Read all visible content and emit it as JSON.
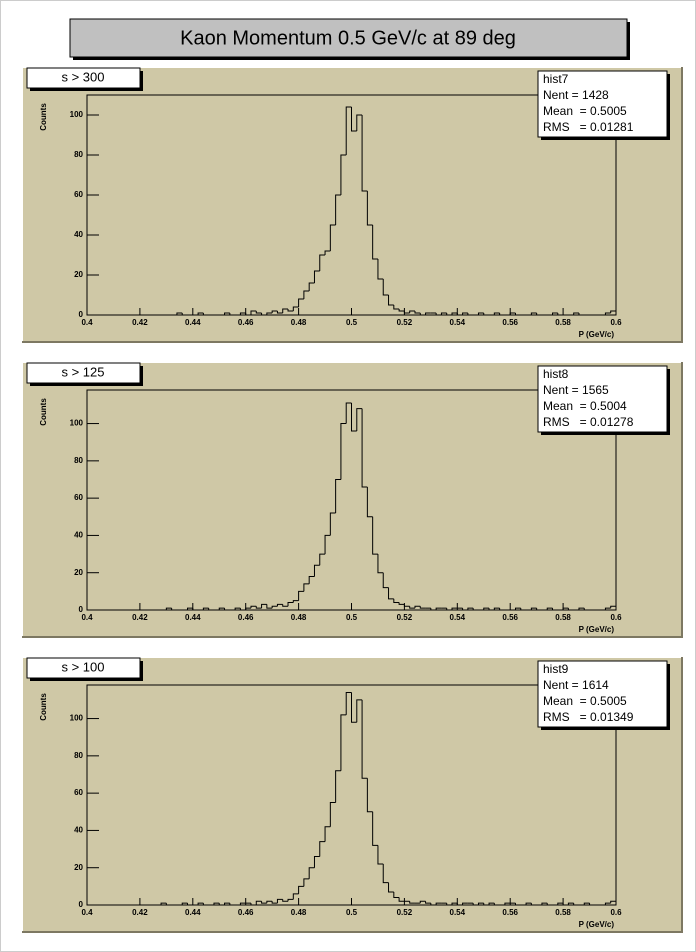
{
  "title": "Kaon Momentum 0.5 GeV/c at 89 deg",
  "chart_data": [
    {
      "type": "histogram",
      "title": "s > 300",
      "xlabel": "P (GeV/c)",
      "ylabel": "Counts",
      "stats": [
        "hist7",
        "Nent = 1428",
        "Mean  = 0.5005",
        "RMS   = 0.01281"
      ],
      "color": "#000000",
      "bins": [
        0.4,
        0.402,
        0.404,
        0.406,
        0.408,
        0.41,
        0.412,
        0.414,
        0.416,
        0.418,
        0.42,
        0.422,
        0.424,
        0.426,
        0.428,
        0.43,
        0.432,
        0.434,
        0.436,
        0.438,
        0.44,
        0.442,
        0.444,
        0.446,
        0.448,
        0.45,
        0.452,
        0.454,
        0.456,
        0.458,
        0.46,
        0.462,
        0.464,
        0.466,
        0.468,
        0.47,
        0.472,
        0.474,
        0.476,
        0.478,
        0.48,
        0.482,
        0.484,
        0.486,
        0.488,
        0.49,
        0.492,
        0.494,
        0.496,
        0.498,
        0.5,
        0.502,
        0.504,
        0.506,
        0.508,
        0.51,
        0.512,
        0.514,
        0.516,
        0.518,
        0.52,
        0.522,
        0.524,
        0.526,
        0.528,
        0.53,
        0.532,
        0.534,
        0.536,
        0.538,
        0.54,
        0.542,
        0.544,
        0.546,
        0.548,
        0.55,
        0.552,
        0.554,
        0.556,
        0.558,
        0.56,
        0.562,
        0.564,
        0.566,
        0.568,
        0.57,
        0.572,
        0.574,
        0.576,
        0.578,
        0.58,
        0.582,
        0.584,
        0.586,
        0.588,
        0.59,
        0.592,
        0.594,
        0.596,
        0.598,
        0.6
      ],
      "values": [
        0,
        0,
        0,
        0,
        0,
        0,
        0,
        0,
        0,
        0,
        0,
        0,
        0,
        0,
        0,
        0,
        0,
        1,
        0,
        0,
        0,
        1,
        0,
        0,
        0,
        0,
        1,
        0,
        0,
        1,
        0,
        2,
        1,
        0,
        1,
        2,
        1,
        3,
        2,
        4,
        8,
        12,
        16,
        22,
        30,
        32,
        45,
        60,
        80,
        104,
        92,
        100,
        62,
        45,
        28,
        18,
        10,
        5,
        3,
        2,
        1,
        2,
        1,
        0,
        1,
        1,
        0,
        1,
        0,
        1,
        0,
        1,
        0,
        0,
        1,
        0,
        0,
        1,
        0,
        0,
        1,
        0,
        0,
        0,
        1,
        0,
        0,
        0,
        1,
        0,
        0,
        0,
        1,
        0,
        0,
        0,
        0,
        0,
        1,
        2
      ],
      "xlim": [
        0.4,
        0.6
      ],
      "ylim": [
        0,
        110
      ],
      "xticks": [
        0.4,
        0.42,
        0.44,
        0.46,
        0.48,
        0.5,
        0.52,
        0.54,
        0.56,
        0.58,
        0.6
      ],
      "yticks": [
        0,
        20,
        40,
        60,
        80,
        100
      ]
    },
    {
      "type": "histogram",
      "title": "s > 125",
      "xlabel": "P (GeV/c)",
      "ylabel": "Counts",
      "stats": [
        "hist8",
        "Nent = 1565",
        "Mean  = 0.5004",
        "RMS   = 0.01278"
      ],
      "color": "#000000",
      "bins": [
        0.4,
        0.402,
        0.404,
        0.406,
        0.408,
        0.41,
        0.412,
        0.414,
        0.416,
        0.418,
        0.42,
        0.422,
        0.424,
        0.426,
        0.428,
        0.43,
        0.432,
        0.434,
        0.436,
        0.438,
        0.44,
        0.442,
        0.444,
        0.446,
        0.448,
        0.45,
        0.452,
        0.454,
        0.456,
        0.458,
        0.46,
        0.462,
        0.464,
        0.466,
        0.468,
        0.47,
        0.472,
        0.474,
        0.476,
        0.478,
        0.48,
        0.482,
        0.484,
        0.486,
        0.488,
        0.49,
        0.492,
        0.494,
        0.496,
        0.498,
        0.5,
        0.502,
        0.504,
        0.506,
        0.508,
        0.51,
        0.512,
        0.514,
        0.516,
        0.518,
        0.52,
        0.522,
        0.524,
        0.526,
        0.528,
        0.53,
        0.532,
        0.534,
        0.536,
        0.538,
        0.54,
        0.542,
        0.544,
        0.546,
        0.548,
        0.55,
        0.552,
        0.554,
        0.556,
        0.558,
        0.56,
        0.562,
        0.564,
        0.566,
        0.568,
        0.57,
        0.572,
        0.574,
        0.576,
        0.578,
        0.58,
        0.582,
        0.584,
        0.586,
        0.588,
        0.59,
        0.592,
        0.594,
        0.596,
        0.598,
        0.6
      ],
      "values": [
        0,
        0,
        0,
        0,
        0,
        0,
        0,
        0,
        0,
        0,
        0,
        0,
        0,
        0,
        0,
        1,
        0,
        0,
        0,
        1,
        0,
        0,
        1,
        0,
        0,
        1,
        0,
        0,
        1,
        0,
        1,
        2,
        1,
        3,
        1,
        2,
        3,
        2,
        4,
        5,
        10,
        14,
        18,
        24,
        30,
        40,
        52,
        70,
        100,
        111,
        96,
        108,
        66,
        50,
        30,
        20,
        12,
        6,
        4,
        3,
        2,
        1,
        2,
        1,
        1,
        0,
        1,
        1,
        0,
        1,
        1,
        0,
        1,
        0,
        0,
        1,
        0,
        1,
        0,
        0,
        0,
        1,
        0,
        0,
        1,
        0,
        0,
        1,
        0,
        0,
        1,
        0,
        0,
        1,
        0,
        0,
        0,
        0,
        1,
        2
      ],
      "xlim": [
        0.4,
        0.6
      ],
      "ylim": [
        0,
        118
      ],
      "xticks": [
        0.4,
        0.42,
        0.44,
        0.46,
        0.48,
        0.5,
        0.52,
        0.54,
        0.56,
        0.58,
        0.6
      ],
      "yticks": [
        0,
        20,
        40,
        60,
        80,
        100
      ]
    },
    {
      "type": "histogram",
      "title": "s > 100",
      "xlabel": "P (GeV/c)",
      "ylabel": "Counts",
      "stats": [
        "hist9",
        "Nent = 1614",
        "Mean  = 0.5005",
        "RMS   = 0.01349"
      ],
      "color": "#000000",
      "bins": [
        0.4,
        0.402,
        0.404,
        0.406,
        0.408,
        0.41,
        0.412,
        0.414,
        0.416,
        0.418,
        0.42,
        0.422,
        0.424,
        0.426,
        0.428,
        0.43,
        0.432,
        0.434,
        0.436,
        0.438,
        0.44,
        0.442,
        0.444,
        0.446,
        0.448,
        0.45,
        0.452,
        0.454,
        0.456,
        0.458,
        0.46,
        0.462,
        0.464,
        0.466,
        0.468,
        0.47,
        0.472,
        0.474,
        0.476,
        0.478,
        0.48,
        0.482,
        0.484,
        0.486,
        0.488,
        0.49,
        0.492,
        0.494,
        0.496,
        0.498,
        0.5,
        0.502,
        0.504,
        0.506,
        0.508,
        0.51,
        0.512,
        0.514,
        0.516,
        0.518,
        0.52,
        0.522,
        0.524,
        0.526,
        0.528,
        0.53,
        0.532,
        0.534,
        0.536,
        0.538,
        0.54,
        0.542,
        0.544,
        0.546,
        0.548,
        0.55,
        0.552,
        0.554,
        0.556,
        0.558,
        0.56,
        0.562,
        0.564,
        0.566,
        0.568,
        0.57,
        0.572,
        0.574,
        0.576,
        0.578,
        0.58,
        0.582,
        0.584,
        0.586,
        0.588,
        0.59,
        0.592,
        0.594,
        0.596,
        0.598,
        0.6
      ],
      "values": [
        0,
        0,
        0,
        0,
        0,
        0,
        0,
        0,
        0,
        0,
        0,
        0,
        0,
        0,
        1,
        0,
        0,
        0,
        1,
        0,
        0,
        1,
        0,
        0,
        1,
        0,
        1,
        0,
        0,
        1,
        1,
        0,
        2,
        1,
        2,
        1,
        3,
        2,
        3,
        6,
        10,
        14,
        20,
        26,
        34,
        42,
        55,
        72,
        102,
        114,
        98,
        110,
        68,
        50,
        32,
        22,
        12,
        7,
        4,
        2,
        2,
        1,
        1,
        2,
        1,
        0,
        1,
        1,
        0,
        1,
        0,
        1,
        1,
        0,
        1,
        0,
        1,
        0,
        0,
        1,
        1,
        0,
        0,
        1,
        0,
        0,
        1,
        0,
        0,
        1,
        0,
        1,
        0,
        0,
        1,
        0,
        0,
        0,
        1,
        2
      ],
      "xlim": [
        0.4,
        0.6
      ],
      "ylim": [
        0,
        118
      ],
      "xticks": [
        0.4,
        0.42,
        0.44,
        0.46,
        0.48,
        0.5,
        0.52,
        0.54,
        0.56,
        0.58,
        0.6
      ],
      "yticks": [
        0,
        20,
        40,
        60,
        80,
        100
      ]
    }
  ]
}
